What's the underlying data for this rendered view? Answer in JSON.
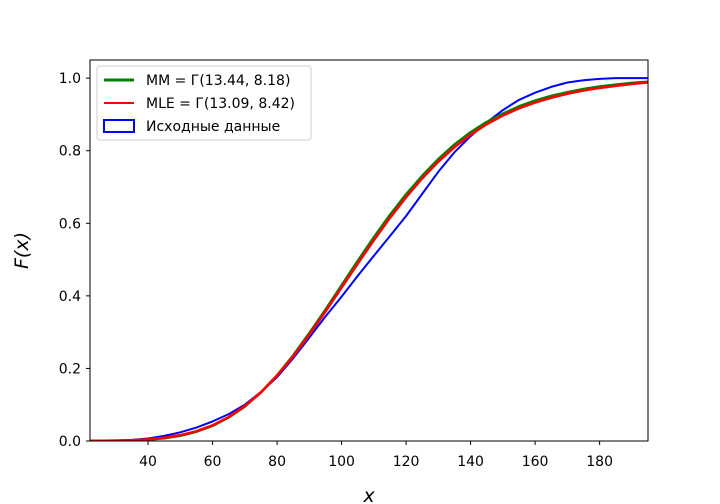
{
  "chart_data": {
    "type": "line",
    "title": "",
    "xlabel": "x",
    "ylabel": "F(x)",
    "xlim": [
      22,
      195
    ],
    "ylim": [
      0,
      1.05
    ],
    "x_ticks": [
      40,
      60,
      80,
      100,
      120,
      140,
      160,
      180
    ],
    "y_ticks": [
      0.0,
      0.2,
      0.4,
      0.6,
      0.8,
      1.0
    ],
    "y_tick_labels": [
      "0.0",
      "0.2",
      "0.4",
      "0.6",
      "0.8",
      "1.0"
    ],
    "grid": false,
    "legend_position": "upper-left",
    "legend": [
      {
        "label": "MM = Г(13.44, 8.18)",
        "color": "#008000",
        "style": "line"
      },
      {
        "label": "MLE = Г(13.09, 8.42)",
        "color": "#ff0000",
        "style": "line"
      },
      {
        "label": "Исходные данные",
        "color": "#0000ff",
        "style": "patch"
      }
    ],
    "series": [
      {
        "name": "MM = Г(13.44, 8.18)",
        "color": "#008000",
        "x": [
          22,
          30,
          35,
          40,
          45,
          50,
          55,
          60,
          65,
          70,
          75,
          80,
          85,
          90,
          95,
          100,
          105,
          110,
          115,
          120,
          125,
          130,
          135,
          140,
          145,
          150,
          155,
          160,
          165,
          170,
          175,
          180,
          185,
          190,
          195
        ],
        "y": [
          0.0002,
          0.0007,
          0.0017,
          0.0038,
          0.0077,
          0.0145,
          0.0255,
          0.042,
          0.065,
          0.095,
          0.134,
          0.181,
          0.236,
          0.297,
          0.362,
          0.429,
          0.496,
          0.561,
          0.623,
          0.68,
          0.731,
          0.777,
          0.817,
          0.851,
          0.879,
          0.902,
          0.922,
          0.938,
          0.951,
          0.961,
          0.97,
          0.977,
          0.982,
          0.987,
          0.99
        ]
      },
      {
        "name": "MLE = Г(13.09, 8.42)",
        "color": "#ff0000",
        "x": [
          22,
          30,
          35,
          40,
          45,
          50,
          55,
          60,
          65,
          70,
          75,
          80,
          85,
          90,
          95,
          100,
          105,
          110,
          115,
          120,
          125,
          130,
          135,
          140,
          145,
          150,
          155,
          160,
          165,
          170,
          175,
          180,
          185,
          190,
          195
        ],
        "y": [
          0.0003,
          0.0009,
          0.002,
          0.0045,
          0.0088,
          0.016,
          0.027,
          0.043,
          0.066,
          0.096,
          0.134,
          0.18,
          0.233,
          0.293,
          0.357,
          0.423,
          0.489,
          0.553,
          0.615,
          0.672,
          0.724,
          0.77,
          0.81,
          0.844,
          0.873,
          0.897,
          0.917,
          0.933,
          0.946,
          0.957,
          0.966,
          0.973,
          0.979,
          0.984,
          0.988
        ]
      },
      {
        "name": "Исходные данные",
        "color": "#0000ff",
        "x": [
          22,
          30,
          35,
          40,
          45,
          50,
          55,
          60,
          65,
          70,
          75,
          80,
          85,
          90,
          95,
          100,
          105,
          110,
          115,
          120,
          125,
          130,
          135,
          140,
          145,
          150,
          155,
          160,
          165,
          170,
          175,
          180,
          185,
          190,
          195
        ],
        "y": [
          0.0,
          0.001,
          0.003,
          0.007,
          0.014,
          0.024,
          0.037,
          0.054,
          0.074,
          0.1,
          0.135,
          0.176,
          0.228,
          0.285,
          0.343,
          0.398,
          0.455,
          0.51,
          0.565,
          0.62,
          0.681,
          0.742,
          0.796,
          0.84,
          0.878,
          0.912,
          0.94,
          0.96,
          0.976,
          0.988,
          0.994,
          0.998,
          1.0,
          1.0,
          1.0
        ]
      }
    ]
  }
}
